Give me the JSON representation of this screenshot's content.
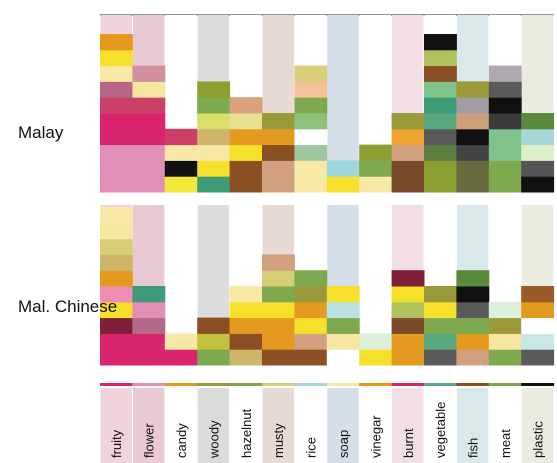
{
  "chart_data": {
    "type": "stacked-bar",
    "categories": [
      "fruity",
      "flower",
      "candy",
      "woody",
      "hazelnut",
      "musty",
      "rice",
      "soap",
      "vinegar",
      "burnt",
      "vegetable",
      "fish",
      "meat",
      "plastic"
    ],
    "category_band_colors": [
      "#f1d3dc",
      "#e9c9d3",
      "#ffffff",
      "#dcdcdc",
      "#ffffff",
      "#e7d9d3",
      "#ffffff",
      "#d5dfe9",
      "#ffffff",
      "#f1dfe5",
      "#ffffff",
      "#d9e8e8",
      "#ffffff",
      "#e9ecde"
    ],
    "groups": [
      {
        "name": "Malay",
        "segments": [
          [
            [
              "#e28fb7",
              3
            ],
            [
              "#d9256d",
              2
            ],
            [
              "#cc3f66",
              1
            ],
            [
              "#b86683",
              1
            ],
            [
              "#f8e8a6",
              1
            ],
            [
              "#f5e12b",
              1
            ],
            [
              "#e39a1e",
              1
            ]
          ],
          [
            [
              "#e28fb7",
              3
            ],
            [
              "#d9256d",
              2
            ],
            [
              "#cc3f66",
              1
            ],
            [
              "#f5e6a1",
              1
            ],
            [
              "#d48f9f",
              1
            ]
          ],
          [
            [
              "#f2e93a",
              1
            ],
            [
              "#111111",
              1
            ],
            [
              "#f8e8a6",
              1
            ],
            [
              "#cc3f66",
              1
            ]
          ],
          [
            [
              "#3f9b77",
              1
            ],
            [
              "#f5e12b",
              1
            ],
            [
              "#f8e8a6",
              1
            ],
            [
              "#cdb56a",
              1
            ],
            [
              "#d9e06a",
              1
            ],
            [
              "#7ea94f",
              1
            ],
            [
              "#8b9f33",
              1
            ]
          ],
          [
            [
              "#8a4f22",
              2
            ],
            [
              "#f5e12b",
              1
            ],
            [
              "#e39a1e",
              1
            ],
            [
              "#e7e08f",
              1
            ],
            [
              "#d9a27a",
              1
            ]
          ],
          [
            [
              "#d0a07f",
              2
            ],
            [
              "#8a4f22",
              1
            ],
            [
              "#e39a1e",
              1
            ],
            [
              "#9a9a3a",
              1
            ]
          ],
          [
            [
              "#f8e8a6",
              2
            ],
            [
              "#9ec7a0",
              1
            ],
            [
              "#ffffff",
              1
            ],
            [
              "#8ec27b",
              1
            ],
            [
              "#7ea94f",
              1
            ],
            [
              "#f3c29b",
              1
            ],
            [
              "#d9cf78",
              1
            ]
          ],
          [
            [
              "#f5e12b",
              1
            ],
            [
              "#9fd6dc",
              1
            ]
          ],
          [
            [
              "#f8e8a6",
              1
            ],
            [
              "#7ea94f",
              1
            ],
            [
              "#8b9f33",
              1
            ]
          ],
          [
            [
              "#7a4a2a",
              2
            ],
            [
              "#d0a07f",
              1
            ],
            [
              "#f0a530",
              1
            ],
            [
              "#9a9a3a",
              1
            ]
          ],
          [
            [
              "#8b9f33",
              2
            ],
            [
              "#5c7f3f",
              1
            ],
            [
              "#595959",
              1
            ],
            [
              "#5aa87f",
              1
            ],
            [
              "#3f9b77",
              1
            ],
            [
              "#7fc28b",
              1
            ],
            [
              "#8a4f22",
              1
            ],
            [
              "#b0c25e",
              1
            ],
            [
              "#111111",
              1
            ]
          ],
          [
            [
              "#6a6a40",
              2
            ],
            [
              "#444444",
              1
            ],
            [
              "#111111",
              1
            ],
            [
              "#cda079",
              1
            ],
            [
              "#a29da4",
              1
            ],
            [
              "#9a9a3a",
              1
            ]
          ],
          [
            [
              "#7ea94f",
              2
            ],
            [
              "#7fc28b",
              1
            ],
            [
              "#7fc28b",
              1
            ],
            [
              "#3b3b3b",
              1
            ],
            [
              "#111111",
              1
            ],
            [
              "#5a5a5a",
              1
            ],
            [
              "#b0a8b0",
              1
            ]
          ],
          [
            [
              "#111111",
              1
            ],
            [
              "#555555",
              1
            ],
            [
              "#dcefc6",
              1
            ],
            [
              "#a7d6d9",
              1
            ],
            [
              "#5c8a3c",
              1
            ]
          ]
        ]
      },
      {
        "name": "Mal. Chinese",
        "segments": [
          [
            [
              "#d9256d",
              2
            ],
            [
              "#7f1f3a",
              1
            ],
            [
              "#f5e12b",
              1
            ],
            [
              "#f28cb3",
              1
            ],
            [
              "#e39a1e",
              1
            ],
            [
              "#cdb56a",
              1
            ],
            [
              "#d7cf78",
              1
            ],
            [
              "#f5e6a1",
              1
            ],
            [
              "#f8e8a6",
              1
            ]
          ],
          [
            [
              "#d9256d",
              2
            ],
            [
              "#b36a86",
              1
            ],
            [
              "#e28fb7",
              1
            ],
            [
              "#3f9b77",
              1
            ]
          ],
          [
            [
              "#d9256d",
              1
            ],
            [
              "#f8e8a6",
              1
            ]
          ],
          [
            [
              "#7ea94f",
              1
            ],
            [
              "#c2c240",
              1
            ],
            [
              "#8a4f22",
              1
            ]
          ],
          [
            [
              "#cdb56a",
              1
            ],
            [
              "#8a4f22",
              1
            ],
            [
              "#e39a1e",
              1
            ],
            [
              "#f5e12b",
              1
            ],
            [
              "#f8e8a6",
              1
            ]
          ],
          [
            [
              "#8a4f22",
              1
            ],
            [
              "#e39a1e",
              1
            ],
            [
              "#e39a1e",
              1
            ],
            [
              "#f5e12b",
              1
            ],
            [
              "#7ea94f",
              1
            ],
            [
              "#d7cf78",
              1
            ],
            [
              "#d0a07f",
              1
            ]
          ],
          [
            [
              "#8a4f22",
              1
            ],
            [
              "#d0a07f",
              1
            ],
            [
              "#f5e12b",
              1
            ],
            [
              "#e39a1e",
              1
            ],
            [
              "#9a9a3a",
              1
            ],
            [
              "#7ea94f",
              1
            ]
          ],
          [
            [
              "#ffffff",
              1
            ],
            [
              "#f5e6a1",
              1
            ],
            [
              "#7ea94f",
              1
            ],
            [
              "#b9e1e0",
              1
            ],
            [
              "#f5e12b",
              1
            ]
          ],
          [
            [
              "#f5e12b",
              1
            ],
            [
              "#dcefd8",
              1
            ]
          ],
          [
            [
              "#e39a1e",
              2
            ],
            [
              "#7a4a2a",
              1
            ],
            [
              "#b0c25e",
              1
            ],
            [
              "#f5e12b",
              1
            ],
            [
              "#7f1f3a",
              1
            ]
          ],
          [
            [
              "#5a5a5a",
              1
            ],
            [
              "#5aa87f",
              1
            ],
            [
              "#7ea94f",
              1
            ],
            [
              "#f5e12b",
              1
            ],
            [
              "#9a9a3a",
              1
            ]
          ],
          [
            [
              "#d0a07f",
              1
            ],
            [
              "#e39a1e",
              1
            ],
            [
              "#7ea94f",
              1
            ],
            [
              "#595959",
              1
            ],
            [
              "#111111",
              1
            ],
            [
              "#5c8a3c",
              1
            ]
          ],
          [
            [
              "#7ea94f",
              1
            ],
            [
              "#f5e6a1",
              1
            ],
            [
              "#9a9a3a",
              1
            ],
            [
              "#dcefd8",
              1
            ]
          ],
          [
            [
              "#5a5a5a",
              1
            ],
            [
              "#c9e6e9",
              1
            ],
            [
              "#ffffff",
              1
            ],
            [
              "#e39a1e",
              1
            ],
            [
              "#9a5a2a",
              1
            ]
          ]
        ]
      }
    ],
    "axis_strip_colors": [
      "#d9256d",
      "#e28fb7",
      "#e39a1e",
      "#9a9a3a",
      "#7ea94f",
      "#d7cf78",
      "#a7d6d9",
      "#f5e6a1",
      "#e39a1e",
      "#d9256d",
      "#5aa87f",
      "#8a4f22",
      "#7ea94f",
      "#111111"
    ],
    "grid": false,
    "legend": "none"
  }
}
